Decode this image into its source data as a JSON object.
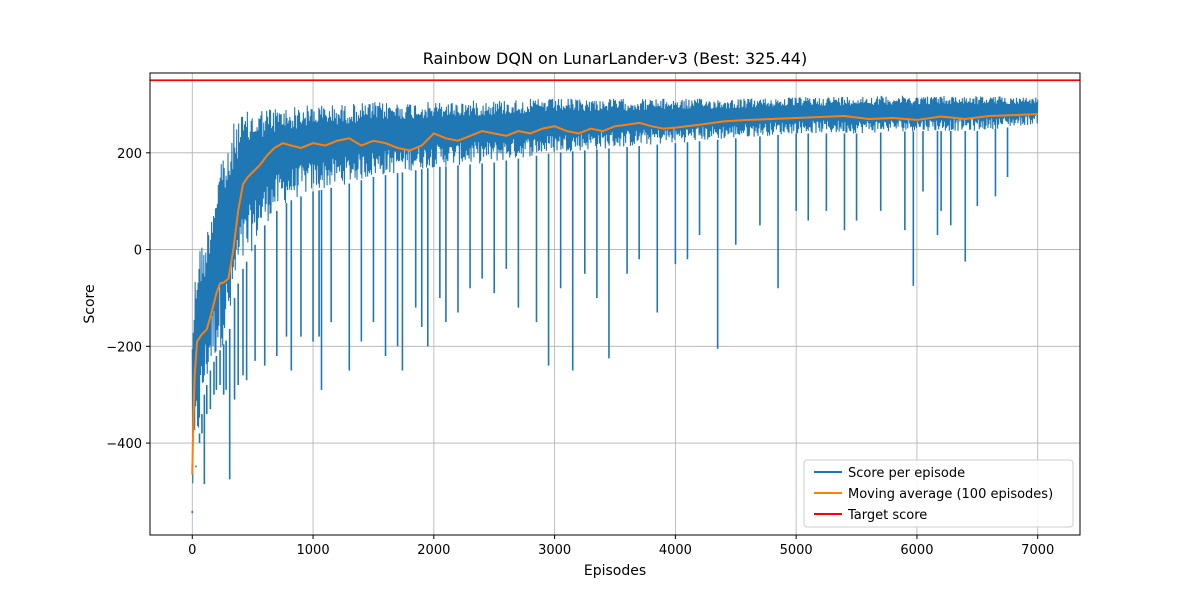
{
  "chart_data": {
    "type": "line",
    "title": "Rainbow DQN on LunarLander-v3 (Best: 325.44)",
    "xlabel": "Episodes",
    "ylabel": "Score",
    "xlim": [
      -350,
      7350
    ],
    "ylim": [
      -590,
      365
    ],
    "x_ticks": [
      0,
      1000,
      2000,
      3000,
      4000,
      5000,
      6000,
      7000
    ],
    "y_ticks": [
      -400,
      -200,
      0,
      200
    ],
    "grid": true,
    "legend_position": "lower-right",
    "series": [
      {
        "name": "Score per episode",
        "color": "#1f77b4",
        "band": {
          "x": [
            0,
            20,
            50,
            100,
            150,
            200,
            250,
            300,
            350,
            400,
            500,
            600,
            700,
            800,
            1000,
            1200,
            1500,
            2000,
            2500,
            3000,
            3500,
            4000,
            4500,
            5000,
            5500,
            6000,
            6500,
            7000
          ],
          "high": [
            -140,
            -60,
            20,
            10,
            80,
            150,
            215,
            200,
            270,
            280,
            290,
            295,
            295,
            295,
            300,
            300,
            305,
            305,
            310,
            312,
            312,
            312,
            312,
            315,
            318,
            318,
            318,
            315
          ],
          "low": [
            -540,
            -470,
            -400,
            -300,
            -250,
            -220,
            -200,
            -180,
            -100,
            -50,
            0,
            50,
            80,
            100,
            120,
            130,
            150,
            170,
            180,
            200,
            210,
            220,
            230,
            240,
            240,
            245,
            245,
            260
          ]
        },
        "spikes": [
          [
            0,
            -545
          ],
          [
            30,
            -450
          ],
          [
            60,
            -400
          ],
          [
            80,
            -380
          ],
          [
            100,
            -485
          ],
          [
            120,
            -340
          ],
          [
            150,
            -330
          ],
          [
            180,
            -300
          ],
          [
            200,
            -290
          ],
          [
            230,
            -280
          ],
          [
            260,
            -300
          ],
          [
            280,
            -290
          ],
          [
            310,
            -475
          ],
          [
            350,
            -310
          ],
          [
            380,
            -280
          ],
          [
            420,
            -260
          ],
          [
            450,
            -270
          ],
          [
            520,
            -230
          ],
          [
            600,
            -240
          ],
          [
            700,
            -220
          ],
          [
            780,
            -180
          ],
          [
            820,
            -250
          ],
          [
            900,
            -180
          ],
          [
            1000,
            -190
          ],
          [
            1050,
            -180
          ],
          [
            1070,
            -290
          ],
          [
            1150,
            -150
          ],
          [
            1300,
            -250
          ],
          [
            1400,
            -190
          ],
          [
            1500,
            -150
          ],
          [
            1600,
            -220
          ],
          [
            1700,
            -200
          ],
          [
            1740,
            -250
          ],
          [
            1850,
            -120
          ],
          [
            1900,
            -160
          ],
          [
            1950,
            -200
          ],
          [
            2050,
            -100
          ],
          [
            2100,
            -150
          ],
          [
            2200,
            -130
          ],
          [
            2300,
            -80
          ],
          [
            2400,
            -60
          ],
          [
            2500,
            -90
          ],
          [
            2600,
            -40
          ],
          [
            2700,
            -120
          ],
          [
            2850,
            -150
          ],
          [
            2950,
            -240
          ],
          [
            3050,
            -80
          ],
          [
            3150,
            -250
          ],
          [
            3250,
            -50
          ],
          [
            3350,
            -100
          ],
          [
            3450,
            -225
          ],
          [
            3600,
            -50
          ],
          [
            3700,
            -20
          ],
          [
            3850,
            -130
          ],
          [
            4000,
            -30
          ],
          [
            4100,
            -20
          ],
          [
            4200,
            30
          ],
          [
            4350,
            -205
          ],
          [
            4500,
            10
          ],
          [
            4700,
            50
          ],
          [
            4850,
            -80
          ],
          [
            5000,
            80
          ],
          [
            5100,
            60
          ],
          [
            5250,
            80
          ],
          [
            5400,
            40
          ],
          [
            5500,
            60
          ],
          [
            5700,
            80
          ],
          [
            5900,
            40
          ],
          [
            5970,
            -75
          ],
          [
            6050,
            120
          ],
          [
            6170,
            30
          ],
          [
            6200,
            80
          ],
          [
            6280,
            50
          ],
          [
            6400,
            -25
          ],
          [
            6500,
            90
          ],
          [
            6650,
            110
          ],
          [
            6750,
            150
          ]
        ]
      },
      {
        "name": "Moving average (100 episodes)",
        "color": "#ff7f0e",
        "x": [
          0,
          10,
          20,
          40,
          80,
          120,
          160,
          200,
          230,
          260,
          300,
          340,
          380,
          420,
          460,
          500,
          560,
          620,
          680,
          750,
          820,
          900,
          1000,
          1100,
          1200,
          1300,
          1400,
          1500,
          1600,
          1700,
          1800,
          1900,
          2000,
          2100,
          2200,
          2300,
          2400,
          2500,
          2600,
          2700,
          2800,
          2900,
          3000,
          3100,
          3200,
          3300,
          3400,
          3500,
          3600,
          3700,
          3800,
          3900,
          4000,
          4200,
          4400,
          4600,
          4800,
          5000,
          5200,
          5400,
          5600,
          5800,
          6000,
          6200,
          6400,
          6600,
          6800,
          7000
        ],
        "y": [
          -465,
          -340,
          -260,
          -190,
          -175,
          -165,
          -130,
          -90,
          -70,
          -68,
          -60,
          0,
          80,
          135,
          150,
          160,
          175,
          195,
          210,
          220,
          215,
          210,
          220,
          215,
          225,
          230,
          215,
          225,
          220,
          210,
          205,
          215,
          240,
          230,
          225,
          235,
          245,
          240,
          235,
          245,
          240,
          250,
          255,
          245,
          240,
          250,
          245,
          255,
          258,
          262,
          255,
          250,
          252,
          258,
          265,
          268,
          270,
          272,
          274,
          276,
          270,
          272,
          268,
          275,
          270,
          276,
          278,
          280
        ]
      },
      {
        "name": "Target score",
        "color": "#ff0000",
        "type": "hline",
        "y": 350
      }
    ]
  }
}
